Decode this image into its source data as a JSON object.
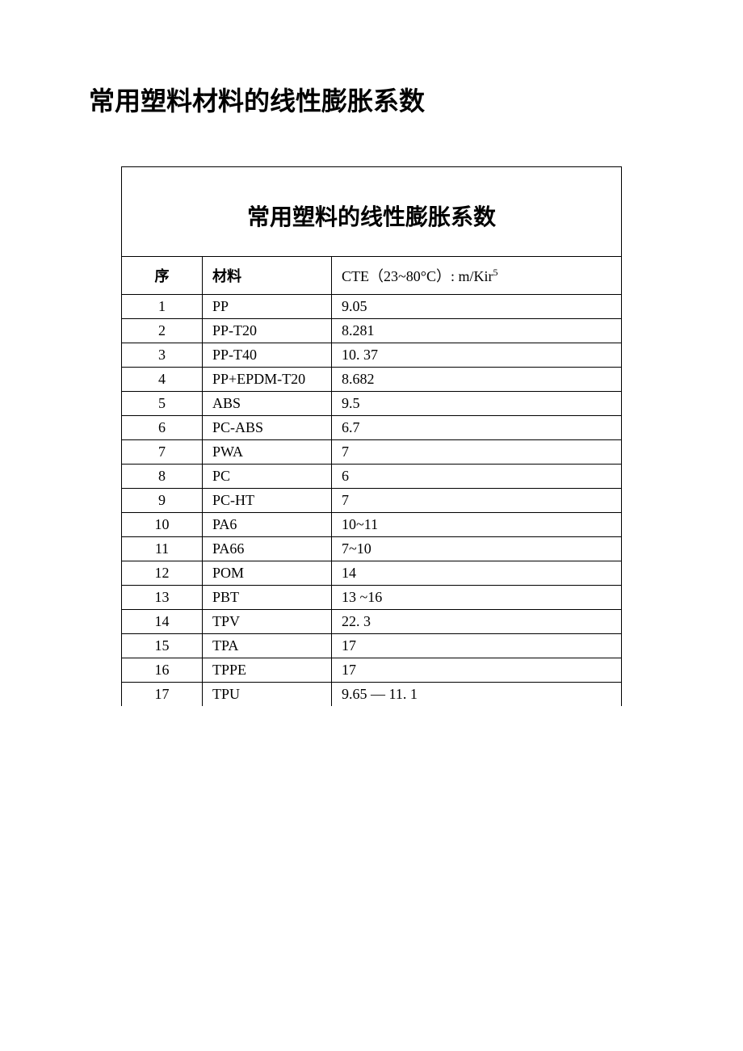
{
  "page_title": "常用塑料材料的线性膨胀系数",
  "table": {
    "title": "常用塑料的线性膨胀系数",
    "columns": {
      "seq": "序",
      "material": "材料",
      "cte_prefix": "CTE（23",
      "cte_tilde": "~",
      "cte_mid": "80°C）: m/Kir",
      "cte_sup": "5"
    },
    "rows": [
      {
        "seq": "1",
        "material": "PP",
        "cte": "9.05"
      },
      {
        "seq": "2",
        "material": "PP-T20",
        "cte": "8.281"
      },
      {
        "seq": "3",
        "material": "PP-T40",
        "cte": "10. 37"
      },
      {
        "seq": "4",
        "material": "PP+EPDM-T20",
        "cte": "8.682"
      },
      {
        "seq": "5",
        "material": "ABS",
        "cte": "9.5"
      },
      {
        "seq": "6",
        "material": "PC-ABS",
        "cte": "6.7"
      },
      {
        "seq": "7",
        "material": "PWA",
        "cte": "7"
      },
      {
        "seq": "8",
        "material": "PC",
        "cte": "6"
      },
      {
        "seq": "9",
        "material": "PC-HT",
        "cte": "7"
      },
      {
        "seq": "10",
        "material": "PA6",
        "cte": "10~11"
      },
      {
        "seq": "11",
        "material": "PA66",
        "cte": "7~10"
      },
      {
        "seq": "12",
        "material": "POM",
        "cte": "14"
      },
      {
        "seq": "13",
        "material": "PBT",
        "cte": "13 ~16"
      },
      {
        "seq": "14",
        "material": "TPV",
        "cte": "22. 3"
      },
      {
        "seq": "15",
        "material": "TPA",
        "cte": "17"
      },
      {
        "seq": "16",
        "material": "TPPE",
        "cte": "17"
      },
      {
        "seq": "17",
        "material": "TPU",
        "cte": "9.65 — 11. 1"
      }
    ]
  },
  "style": {
    "background_color": "#ffffff",
    "text_color": "#000000",
    "border_color": "#000000",
    "title_fontsize": 32,
    "table_title_fontsize": 28,
    "header_fontsize": 18,
    "cell_fontsize": 18
  }
}
